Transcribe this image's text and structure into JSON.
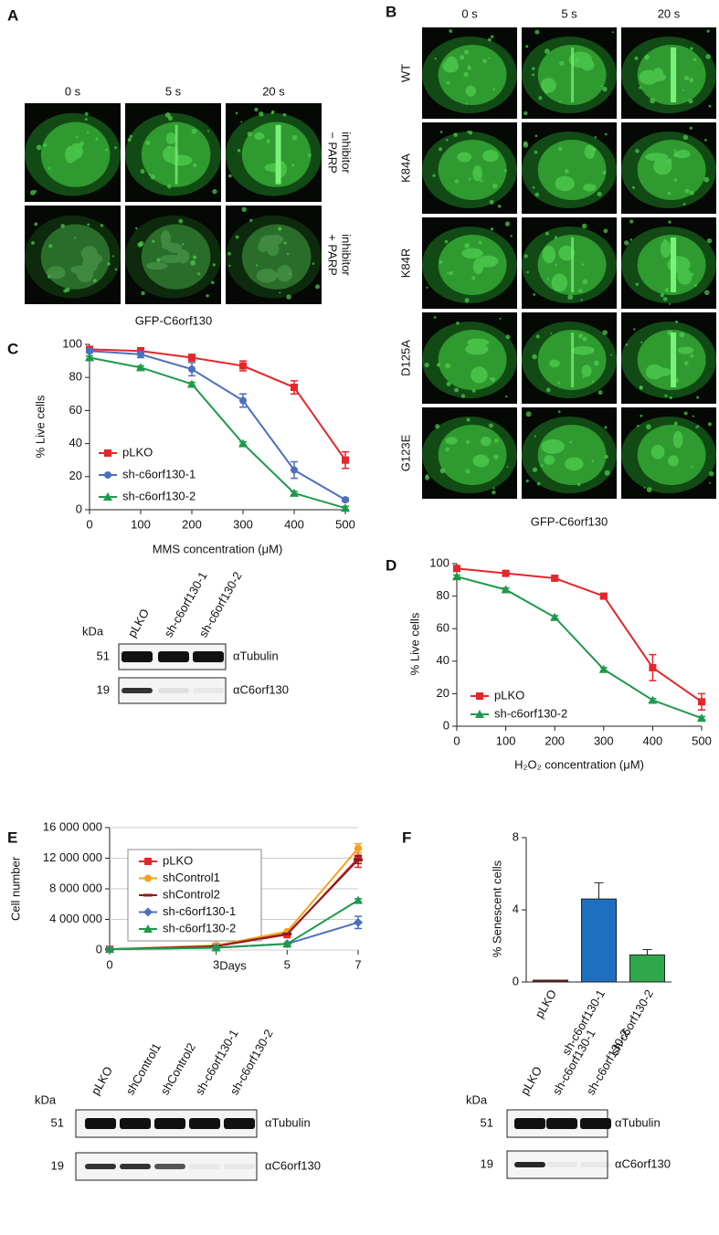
{
  "panels": {
    "A": {
      "label": "A",
      "columns": [
        "0 s",
        "5 s",
        "20 s"
      ],
      "rows": [
        [
          "− PARP",
          "inhibitor"
        ],
        [
          "+ PARP",
          "inhibitor"
        ]
      ],
      "caption": "GFP-C6orf130"
    },
    "B": {
      "label": "B",
      "columns": [
        "0 s",
        "5 s",
        "20 s"
      ],
      "rows": [
        "WT",
        "K84A",
        "K84R",
        "D125A",
        "G123E"
      ],
      "caption": "GFP-C6orf130"
    }
  },
  "blots": [
    {
      "unit": "kDa",
      "lanes": [
        "pLKO",
        "sh-c6orf130-1",
        "sh-c6orf130-2"
      ],
      "rows": [
        {
          "size": "51",
          "antibody": "αTubulin"
        },
        {
          "size": "19",
          "antibody": "αC6orf130"
        }
      ]
    },
    {
      "unit": "kDa",
      "lanes": [
        "pLKO",
        "shControl1",
        "shControl2",
        "sh-c6orf130-1",
        "sh-c6orf130-2"
      ],
      "rows": [
        {
          "size": "51",
          "antibody": "αTubulin"
        },
        {
          "size": "19",
          "antibody": "αC6orf130"
        }
      ]
    },
    {
      "unit": "kDa",
      "lanes": [
        "pLKO",
        "sh-c6orf130-1",
        "sh-c6orf130-2"
      ],
      "rows": [
        {
          "size": "51",
          "antibody": "αTubulin"
        },
        {
          "size": "19",
          "antibody": "αC6orf130"
        }
      ]
    }
  ],
  "chart_data": [
    {
      "label": "C",
      "type": "line",
      "ylabel": "% Live cells",
      "xlabel": "MMS concentration (μM)",
      "x": [
        0,
        100,
        200,
        300,
        400,
        500
      ],
      "xlim": [
        0,
        500
      ],
      "xticks": [
        0,
        100,
        200,
        300,
        400,
        500
      ],
      "ylim": [
        0,
        100
      ],
      "yticks": [
        0,
        20,
        40,
        60,
        80,
        100
      ],
      "grid": false,
      "series": [
        {
          "name": "pLKO",
          "color": "#e5262b",
          "marker": "square",
          "values": [
            97,
            96,
            92,
            87,
            74,
            30
          ],
          "errors": [
            1,
            2,
            2,
            3,
            4,
            5
          ]
        },
        {
          "name": "sh-c6orf130-1",
          "color": "#4d6fbf",
          "marker": "circle",
          "values": [
            96,
            94,
            85,
            66,
            24,
            6
          ],
          "errors": [
            1,
            2,
            4,
            4,
            5,
            1
          ]
        },
        {
          "name": "sh-c6orf130-2",
          "color": "#1d9a4b",
          "marker": "triangle",
          "values": [
            92,
            86,
            76,
            40,
            10,
            1
          ],
          "errors": [
            1,
            1,
            1,
            1,
            1,
            1
          ]
        }
      ]
    },
    {
      "label": "D",
      "type": "line",
      "ylabel": "% Live cells",
      "xlabel": "H₂O₂ concentration (μM)",
      "x": [
        0,
        100,
        200,
        300,
        400,
        500
      ],
      "xlim": [
        0,
        500
      ],
      "xticks": [
        0,
        100,
        200,
        300,
        400,
        500
      ],
      "ylim": [
        0,
        100
      ],
      "yticks": [
        0,
        20,
        40,
        60,
        80,
        100
      ],
      "grid": false,
      "series": [
        {
          "name": "pLKO",
          "color": "#e5262b",
          "marker": "square",
          "values": [
            97,
            94,
            91,
            80,
            36,
            15
          ],
          "errors": [
            1,
            1,
            1,
            1,
            8,
            5
          ]
        },
        {
          "name": "sh-c6orf130-2",
          "color": "#1d9a4b",
          "marker": "triangle",
          "values": [
            92,
            84,
            67,
            35,
            16,
            5
          ],
          "errors": [
            1,
            1,
            1,
            1,
            1,
            1
          ]
        }
      ]
    },
    {
      "label": "E",
      "type": "line",
      "ylabel": "Cell number",
      "xlabel": "Days",
      "x": [
        0,
        3,
        5,
        7
      ],
      "xlim": [
        0,
        7
      ],
      "xticks": [
        0,
        3,
        5,
        7
      ],
      "ylim": [
        0,
        16000000
      ],
      "yticks": [
        0,
        {
          "value": 4000000,
          "label": "4 000 000"
        },
        {
          "value": 8000000,
          "label": "8 000 000"
        },
        {
          "value": 12000000,
          "label": "12 000 000"
        },
        {
          "value": 16000000,
          "label": "16 000 000"
        }
      ],
      "grid": true,
      "series": [
        {
          "name": "pLKO",
          "color": "#e5262b",
          "marker": "square",
          "values": [
            100000,
            500000,
            2000000,
            12000000
          ],
          "errors": [
            0,
            0,
            0,
            1200000
          ]
        },
        {
          "name": "shControl1",
          "color": "#f4a21c",
          "marker": "circle",
          "values": [
            100000,
            600000,
            2400000,
            13300000
          ],
          "errors": [
            0,
            0,
            0,
            600000
          ]
        },
        {
          "name": "shControl2",
          "color": "#8c1c1c",
          "marker": "dash",
          "values": [
            100000,
            500000,
            2100000,
            11800000
          ],
          "errors": [
            0,
            0,
            0,
            500000
          ]
        },
        {
          "name": "sh-c6orf130-1",
          "color": "#4d6fbf",
          "marker": "diamond",
          "values": [
            100000,
            300000,
            800000,
            3600000
          ],
          "errors": [
            0,
            0,
            0,
            800000
          ]
        },
        {
          "name": "sh-c6orf130-2",
          "color": "#1d9a4b",
          "marker": "triangle",
          "values": [
            100000,
            300000,
            800000,
            6500000
          ],
          "errors": [
            0,
            0,
            0,
            200000
          ]
        }
      ]
    },
    {
      "label": "F",
      "type": "bar",
      "ylabel": "% Senescent cells",
      "categories": [
        "pLKO",
        "sh-c6orf130-1",
        "sh-c6orf130-2"
      ],
      "values": [
        0.1,
        4.6,
        1.5
      ],
      "errors": [
        0,
        0.9,
        0.3
      ],
      "colors": [
        "#8c1c1c",
        "#1f6fc0",
        "#2ea84a"
      ],
      "ylim": [
        0,
        8
      ],
      "yticks": [
        0,
        4,
        8
      ],
      "grid": false
    }
  ]
}
